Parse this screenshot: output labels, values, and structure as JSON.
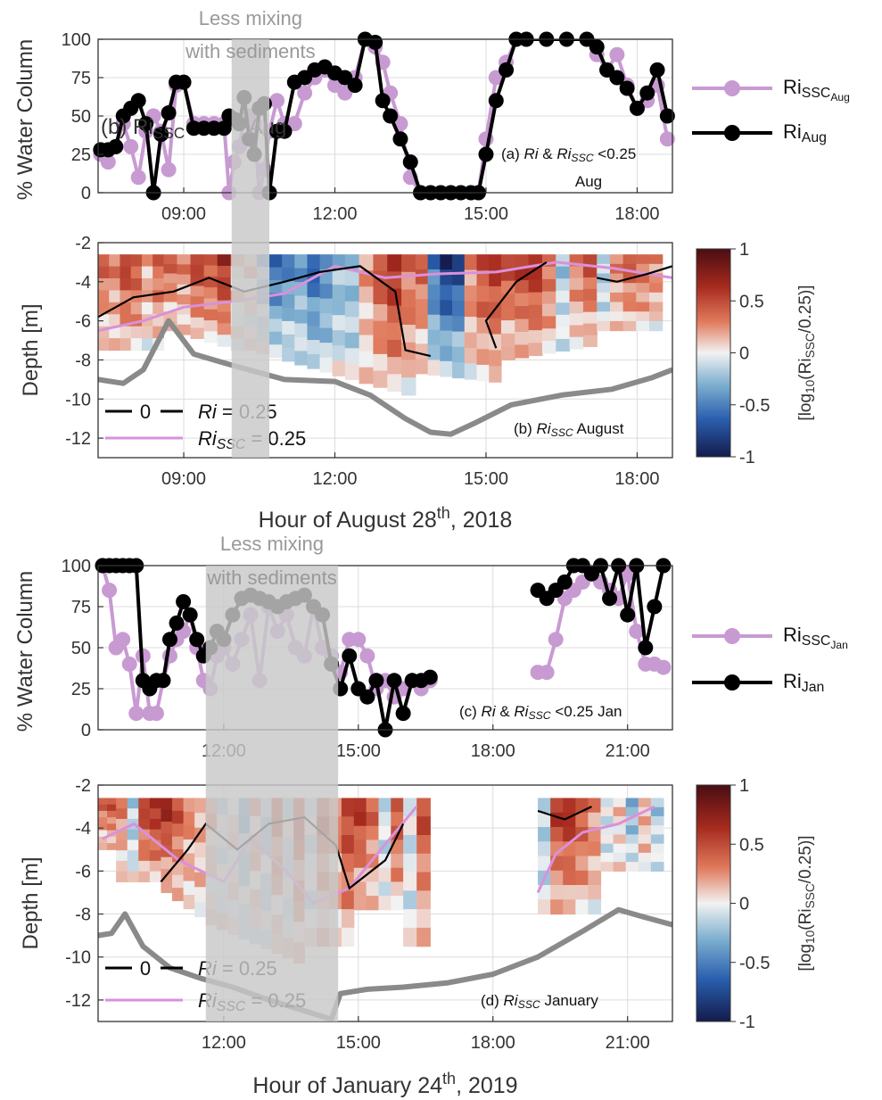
{
  "colors": {
    "ri": "#000000",
    "ri_ssc": "#c89ad2",
    "shade": "#c8c8c8",
    "shade_text": "#9a9a9a",
    "depth_line": "#8a8a8a",
    "contour_ri": "#000000",
    "contour_ri_ssc": "#da90da",
    "cmap_low": "#141b4d",
    "cmap_mid": "#f2f2f2",
    "cmap_high": "#4a0d12"
  },
  "chart_data": [
    {
      "panel": "a",
      "type": "line",
      "annotation": "(a) Ri & RiSSC <0.25",
      "annotation_parts": {
        "pre": "(a) ",
        "ri": "Ri",
        "amp": " & ",
        "risub": "Ri",
        "sub": "SSC",
        "post": " <0.25"
      },
      "annotation_line2": "Aug",
      "overlap_text": "(b) Ri",
      "overlap_sub": "SSC",
      "overlap_tail": "Aug",
      "ylabel": "% Water Column",
      "ylim": [
        0,
        100
      ],
      "yticks": [
        "0",
        "25",
        "50",
        "75",
        "100"
      ],
      "xlim": [
        7.3,
        18.7
      ],
      "xticks": [
        {
          "x": 9,
          "label": "09:00"
        },
        {
          "x": 12,
          "label": "12:00"
        },
        {
          "x": 15,
          "label": "15:00"
        },
        {
          "x": 18,
          "label": "18:00"
        }
      ],
      "shade": {
        "x0": 9.95,
        "x1": 10.7,
        "label1": "Less mixing",
        "label2": "with sediments"
      },
      "legend": [
        {
          "base": "Ri",
          "sub": "SSC",
          "subsub": "Aug",
          "key": "ri_ssc"
        },
        {
          "base": "Ri",
          "sub": "Aug",
          "key": "ri"
        }
      ],
      "series": [
        {
          "name": "Ri_SSC_Aug",
          "key": "ri_ssc",
          "x": [
            7.35,
            7.5,
            7.65,
            7.8,
            7.95,
            8.1,
            8.25,
            8.4,
            8.55,
            8.7,
            8.85,
            9.0,
            9.2,
            9.4,
            9.6,
            9.8,
            9.9,
            10.0,
            10.1,
            10.2,
            10.3,
            10.4,
            10.5,
            10.6,
            10.7,
            10.85,
            11.0,
            11.2,
            11.4,
            11.6,
            11.8,
            12.0,
            12.2,
            12.4,
            12.6,
            12.8,
            12.95,
            13.1,
            13.3,
            13.5,
            13.7,
            13.9,
            14.1,
            14.3,
            14.5,
            14.7,
            14.85,
            15.0,
            15.2,
            15.4,
            15.6,
            15.8,
            16.2,
            16.6,
            17.0,
            17.2,
            17.4,
            17.6,
            17.8,
            18.0,
            18.2,
            18.4,
            18.6
          ],
          "y": [
            25,
            20,
            30,
            45,
            30,
            10,
            40,
            50,
            40,
            15,
            70,
            72,
            45,
            45,
            45,
            45,
            0,
            20,
            30,
            48,
            50,
            45,
            0,
            15,
            40,
            60,
            45,
            45,
            65,
            75,
            80,
            70,
            65,
            75,
            100,
            95,
            85,
            65,
            45,
            10,
            0,
            0,
            0,
            0,
            0,
            0,
            0,
            35,
            75,
            85,
            100,
            100,
            100,
            100,
            100,
            90,
            80,
            90,
            70,
            55,
            60,
            70,
            35
          ]
        },
        {
          "name": "Ri_Aug",
          "key": "ri",
          "x": [
            7.35,
            7.5,
            7.65,
            7.8,
            7.95,
            8.1,
            8.25,
            8.4,
            8.55,
            8.7,
            8.85,
            9.0,
            9.2,
            9.4,
            9.6,
            9.8,
            9.9,
            10.0,
            10.1,
            10.2,
            10.3,
            10.4,
            10.5,
            10.6,
            10.7,
            10.85,
            11.0,
            11.2,
            11.4,
            11.6,
            11.8,
            12.0,
            12.2,
            12.4,
            12.6,
            12.8,
            12.95,
            13.1,
            13.3,
            13.5,
            13.7,
            13.9,
            14.1,
            14.3,
            14.5,
            14.7,
            14.85,
            15.0,
            15.2,
            15.4,
            15.6,
            15.8,
            16.2,
            16.6,
            17.0,
            17.2,
            17.4,
            17.6,
            17.8,
            18.0,
            18.2,
            18.4,
            18.6
          ],
          "y": [
            28,
            28,
            30,
            50,
            55,
            60,
            45,
            0,
            38,
            52,
            72,
            72,
            42,
            42,
            42,
            42,
            50,
            48,
            45,
            62,
            35,
            25,
            55,
            58,
            0,
            40,
            40,
            72,
            75,
            80,
            82,
            78,
            75,
            70,
            100,
            98,
            60,
            50,
            35,
            20,
            0,
            0,
            0,
            0,
            0,
            0,
            0,
            25,
            60,
            80,
            100,
            100,
            100,
            100,
            100,
            95,
            80,
            75,
            68,
            55,
            65,
            80,
            50
          ]
        }
      ]
    },
    {
      "panel": "b",
      "type": "heatmap",
      "annotation_parts": {
        "pre": "(b) ",
        "ri": "Ri",
        "sub": "SSC",
        "post": " August"
      },
      "ylabel": "Depth [m]",
      "ylim": [
        -13,
        -2
      ],
      "yticks": [
        "-12",
        "-10",
        "-8",
        "-6",
        "-4",
        "-2"
      ],
      "xlim": [
        7.3,
        18.7
      ],
      "xticks": [
        {
          "x": 9,
          "label": "09:00"
        },
        {
          "x": 12,
          "label": "12:00"
        },
        {
          "x": 15,
          "label": "15:00"
        },
        {
          "x": 18,
          "label": "18:00"
        }
      ],
      "xlabel_pre": "Hour of August 28",
      "xlabel_sup": "th",
      "xlabel_post": ", 2018",
      "legend_ri": "= 0.25",
      "legend_contour_label": "0",
      "colorbar": {
        "ticks": [
          "1",
          "0.5",
          "0",
          "-0.5",
          "-1"
        ],
        "label": "[log10(RiSSC/0.25)]",
        "parts": {
          "a": "[log",
          "b": "10",
          "c": "(Ri",
          "d": "SSC",
          "e": "/0.25)]"
        }
      },
      "bottom_depth": {
        "x": [
          7.3,
          7.8,
          8.2,
          8.7,
          9.2,
          10.0,
          11.0,
          12.0,
          12.7,
          13.4,
          13.9,
          14.3,
          14.8,
          15.5,
          16.5,
          17.5,
          18.3,
          18.7
        ],
        "y": [
          -9.0,
          -9.2,
          -8.5,
          -6.0,
          -7.7,
          -8.3,
          -9.0,
          -9.1,
          -9.8,
          -11.0,
          -11.7,
          -11.8,
          -11.2,
          -10.3,
          -9.8,
          -9.5,
          -8.9,
          -8.5
        ]
      },
      "values_columns": [
        0.4,
        0.3,
        0.6,
        0.5,
        0.2,
        0.4,
        0.3,
        0.6,
        0.5,
        0.7,
        0.1,
        -0.3,
        -0.6,
        -0.5,
        -0.4,
        -0.7,
        -0.5,
        -0.3,
        0.2,
        0.5,
        0.7,
        0.4,
        -0.6,
        -0.9,
        -0.8,
        0.3,
        0.5,
        0.6,
        0.7,
        0.4,
        -0.2,
        0.3,
        0.5
      ]
    },
    {
      "panel": "c",
      "type": "line",
      "annotation_parts": {
        "pre": "(c) ",
        "ri": "Ri",
        "amp": " & ",
        "risub": "Ri",
        "sub": "SSC",
        "post": " <0.25 Jan"
      },
      "ylabel": "% Water Column",
      "ylim": [
        0,
        100
      ],
      "yticks": [
        "0",
        "25",
        "50",
        "75",
        "100"
      ],
      "xlim": [
        9.2,
        22.0
      ],
      "xticks": [
        {
          "x": 12,
          "label": "12:00"
        },
        {
          "x": 15,
          "label": "15:00"
        },
        {
          "x": 18,
          "label": "18:00"
        },
        {
          "x": 21,
          "label": "21:00"
        }
      ],
      "shade": {
        "x0": 11.6,
        "x1": 14.55,
        "label1": "Less mixing",
        "label2": "with sediments"
      },
      "legend": [
        {
          "base": "Ri",
          "sub": "SSC",
          "subsub": "Jan",
          "key": "ri_ssc"
        },
        {
          "base": "Ri",
          "sub": "Jan",
          "key": "ri"
        }
      ],
      "series": [
        {
          "name": "Ri_SSC_Jan",
          "key": "ri_ssc",
          "segments": [
            {
              "x": [
                9.3,
                9.45,
                9.6,
                9.75,
                9.9,
                10.05,
                10.2,
                10.35,
                10.5,
                10.65,
                10.8,
                10.95,
                11.1,
                11.25,
                11.4,
                11.55,
                11.7,
                11.85,
                12.0,
                12.2,
                12.4,
                12.6,
                12.8,
                13.0,
                13.2,
                13.4,
                13.6,
                13.8,
                14.0,
                14.2,
                14.4,
                14.6,
                14.8,
                15.0,
                15.2,
                15.4,
                15.6,
                15.8,
                16.0,
                16.2,
                16.4,
                16.6
              ],
              "y": [
                100,
                85,
                50,
                55,
                40,
                10,
                45,
                10,
                10,
                30,
                45,
                55,
                60,
                70,
                50,
                30,
                25,
                45,
                50,
                40,
                55,
                70,
                30,
                75,
                60,
                70,
                50,
                45,
                75,
                50,
                45,
                35,
                55,
                55,
                45,
                25,
                30,
                20,
                25,
                30,
                25,
                30
              ]
            },
            {
              "x": [
                19.0,
                19.2,
                19.4,
                19.6,
                19.8,
                20.0,
                20.2,
                20.4,
                20.6,
                20.8,
                21.0,
                21.2,
                21.4,
                21.6,
                21.8
              ],
              "y": [
                35,
                35,
                55,
                80,
                85,
                90,
                95,
                90,
                85,
                80,
                95,
                60,
                40,
                40,
                38
              ]
            }
          ]
        },
        {
          "name": "Ri_Jan",
          "key": "ri",
          "segments": [
            {
              "x": [
                9.3,
                9.45,
                9.6,
                9.75,
                9.9,
                10.05,
                10.2,
                10.35,
                10.5,
                10.65,
                10.8,
                10.95,
                11.1,
                11.25,
                11.4,
                11.55,
                11.7,
                11.85,
                12.0,
                12.2,
                12.4,
                12.6,
                12.8,
                13.0,
                13.2,
                13.4,
                13.6,
                13.8,
                14.0,
                14.2,
                14.4,
                14.6,
                14.8,
                15.0,
                15.2,
                15.4,
                15.6,
                15.8,
                16.0,
                16.2,
                16.4,
                16.6
              ],
              "y": [
                100,
                100,
                100,
                100,
                100,
                100,
                30,
                25,
                30,
                30,
                55,
                65,
                78,
                70,
                55,
                45,
                50,
                60,
                55,
                70,
                80,
                82,
                80,
                78,
                75,
                78,
                80,
                82,
                75,
                70,
                40,
                25,
                45,
                25,
                20,
                30,
                0,
                30,
                10,
                30,
                30,
                32
              ]
            },
            {
              "x": [
                19.0,
                19.2,
                19.4,
                19.6,
                19.8,
                20.0,
                20.2,
                20.4,
                20.6,
                20.8,
                21.0,
                21.2,
                21.4,
                21.6,
                21.8
              ],
              "y": [
                85,
                80,
                85,
                90,
                100,
                100,
                95,
                100,
                80,
                100,
                70,
                100,
                50,
                75,
                100
              ]
            }
          ]
        }
      ]
    },
    {
      "panel": "d",
      "type": "heatmap",
      "annotation_parts": {
        "pre": "(d) ",
        "ri": "Ri",
        "sub": "SSC",
        "post": " January"
      },
      "ylabel": "Depth [m]",
      "ylim": [
        -13,
        -2
      ],
      "yticks": [
        "-12",
        "-10",
        "-8",
        "-6",
        "-4",
        "-2"
      ],
      "xlim": [
        9.2,
        22.0
      ],
      "xticks": [
        {
          "x": 12,
          "label": "12:00"
        },
        {
          "x": 15,
          "label": "15:00"
        },
        {
          "x": 18,
          "label": "18:00"
        },
        {
          "x": 21,
          "label": "21:00"
        }
      ],
      "xlabel_pre": "Hour of January 24",
      "xlabel_sup": "th",
      "xlabel_post": ", 2019",
      "legend_ri": "= 0.25",
      "legend_contour_label": "0",
      "colorbar": {
        "ticks": [
          "1",
          "0.5",
          "0",
          "-0.5",
          "-1"
        ],
        "label": "[log10(RiSSC/0.25)]",
        "parts": {
          "a": "[log",
          "b": "10",
          "c": "(Ri",
          "d": "SSC",
          "e": "/0.25)]"
        }
      },
      "bottom_depth": {
        "x": [
          9.2,
          9.5,
          9.8,
          10.2,
          10.8,
          11.5,
          12.2,
          13.0,
          13.8,
          14.4,
          14.6,
          15.2,
          16.0,
          17.0,
          18.0,
          19.0,
          20.0,
          20.8,
          21.3,
          22.0
        ],
        "y": [
          -9.0,
          -8.9,
          -8.0,
          -9.5,
          -10.5,
          -11.0,
          -11.4,
          -12.0,
          -12.5,
          -12.9,
          -11.7,
          -11.5,
          -11.4,
          -11.2,
          -10.8,
          -10.0,
          -8.8,
          -7.8,
          -8.1,
          -8.5
        ]
      },
      "values_columns": [
        0.4,
        0.5,
        0.3,
        -0.2,
        0.6,
        0.7,
        0.5,
        0.3,
        0.2,
        -0.1,
        0.1,
        -0.3,
        0.2,
        -0.2,
        0.4,
        -0.1,
        0.5,
        0.3,
        0.6,
        0.4,
        -0.1,
        0.5
      ]
    }
  ]
}
